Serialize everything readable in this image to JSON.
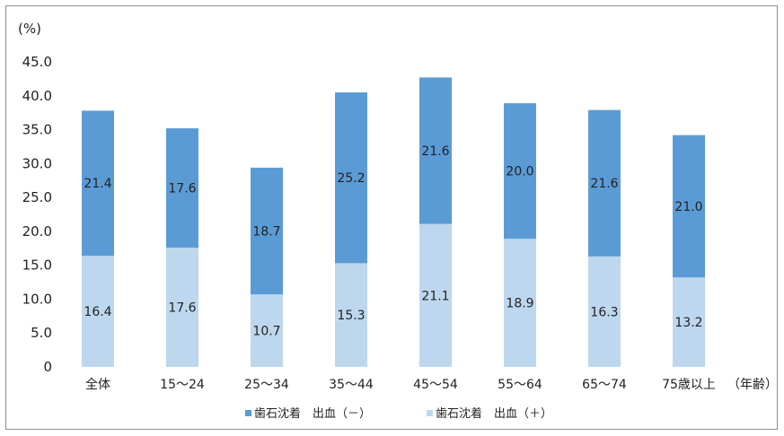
{
  "chart_data": {
    "type": "bar",
    "stacked": true,
    "y_unit_label": "(%)",
    "x_unit_label": "（年齢）",
    "categories": [
      "全体",
      "15～24",
      "25～34",
      "35～44",
      "45～54",
      "55～64",
      "65～74",
      "75歳以上"
    ],
    "series": [
      {
        "name": "歯石沈着　出血（＋）",
        "color": "#bdd7ee",
        "values": [
          16.4,
          17.6,
          10.7,
          15.3,
          21.1,
          18.9,
          16.3,
          13.2
        ]
      },
      {
        "name": "歯石沈着　出血（－）",
        "color": "#5b9bd5",
        "values": [
          21.4,
          17.6,
          18.7,
          25.2,
          21.6,
          20.0,
          21.6,
          21.0
        ]
      }
    ],
    "ylim": [
      0,
      45
    ],
    "yticks": [
      "0",
      "5.0",
      "10.0",
      "15.0",
      "20.0",
      "25.0",
      "30.0",
      "35.0",
      "40.0",
      "45.0"
    ],
    "ytick_values": [
      0,
      5,
      10,
      15,
      20,
      25,
      30,
      35,
      40,
      45
    ],
    "legend_order": [
      1,
      0
    ],
    "legend_position": "bottom",
    "grid": false
  }
}
